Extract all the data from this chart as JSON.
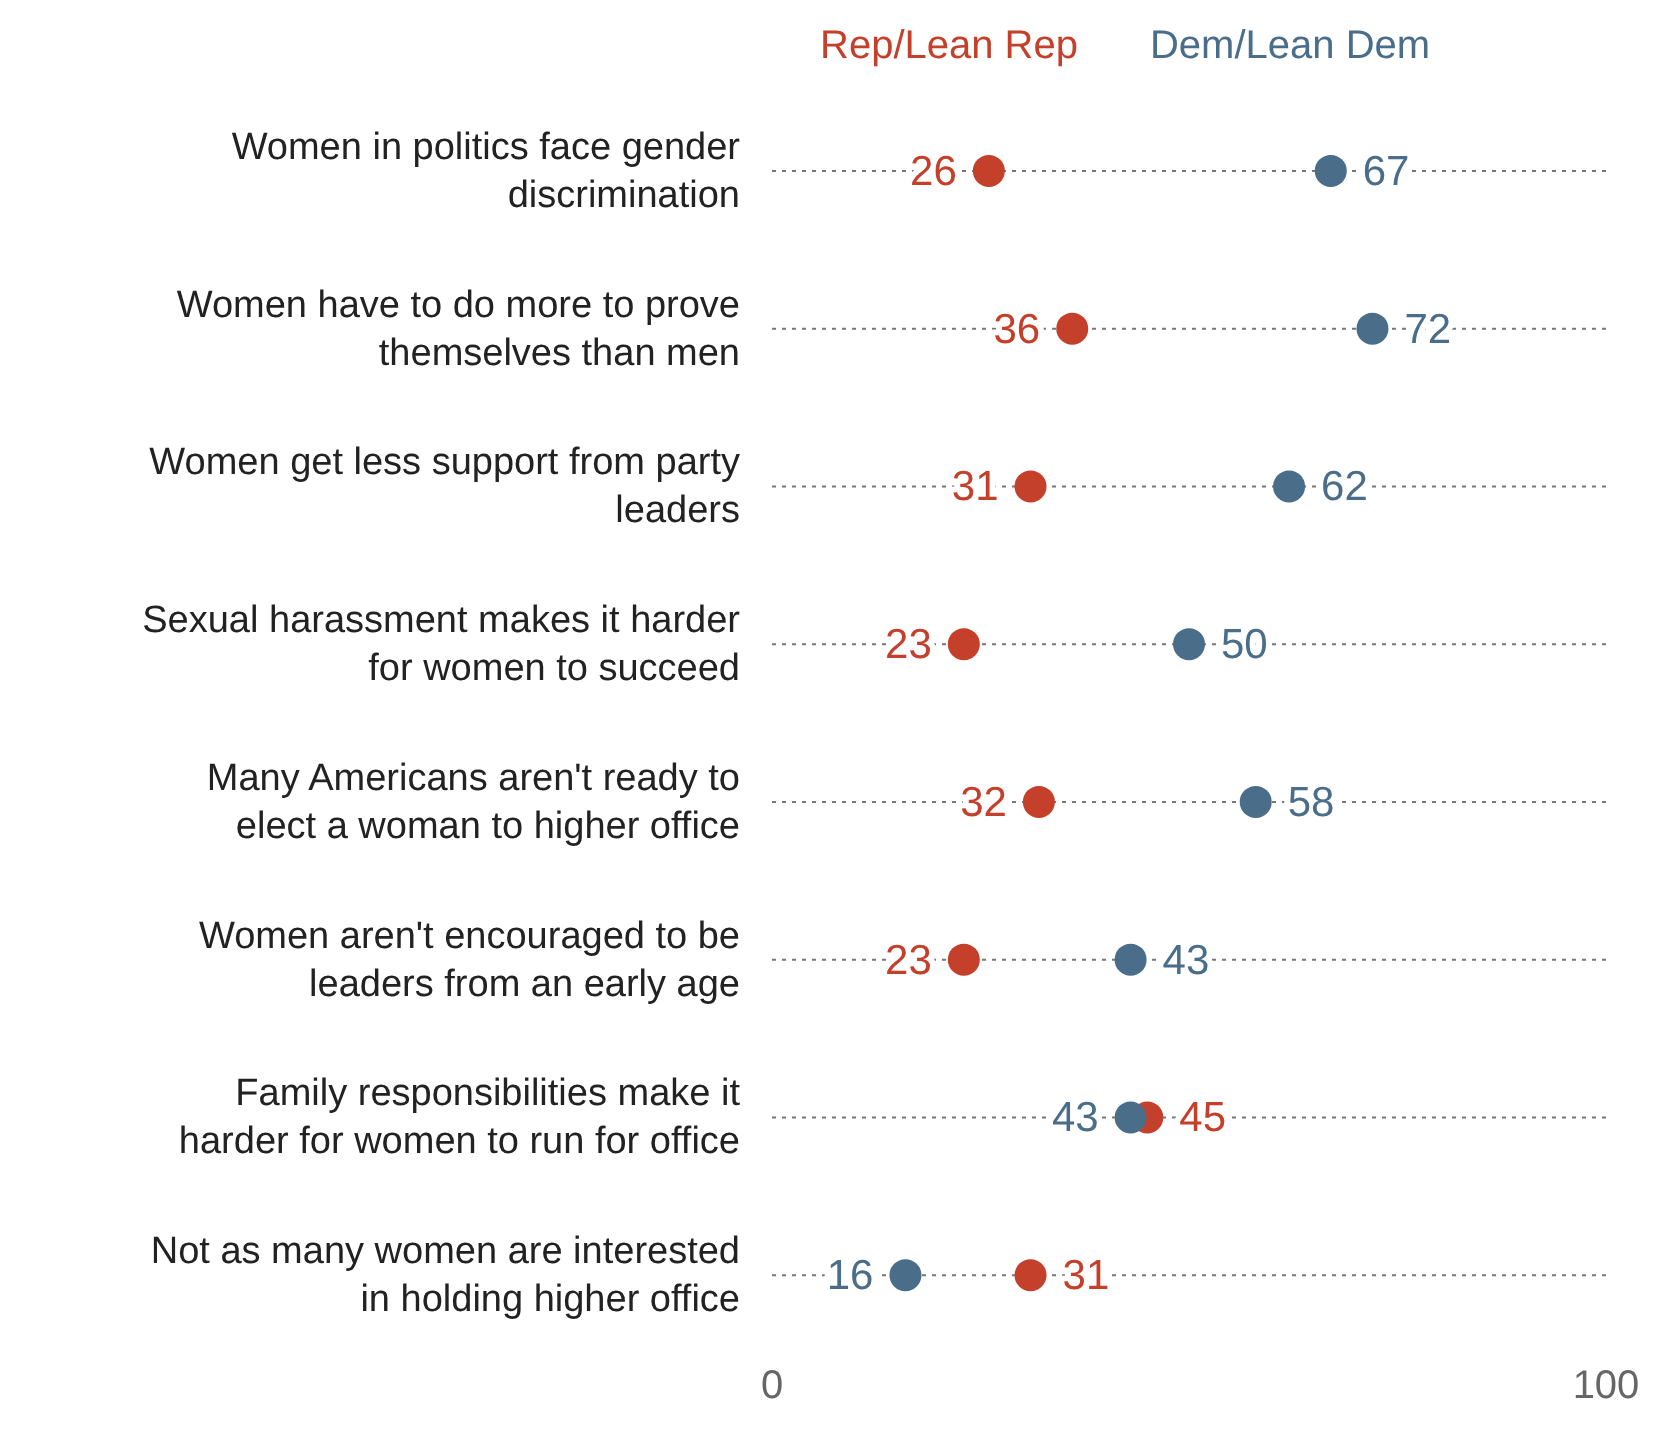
{
  "chart_data": {
    "type": "scatter",
    "orientation": "horizontal",
    "categories": [
      "Women in politics face gender discrimination",
      "Women have to do more to prove themselves than men",
      "Women get less support from party leaders",
      "Sexual harassment makes it harder for women to succeed",
      "Many Americans aren't ready to elect a woman to higher office",
      "Women aren't encouraged to be leaders from an early age",
      "Family responsibilities make it harder for women to run for office",
      "Not as many women are interested in holding higher office"
    ],
    "series": [
      {
        "name": "Rep/Lean Rep",
        "color": "#c4402a",
        "values": [
          26,
          36,
          31,
          23,
          32,
          23,
          45,
          31
        ]
      },
      {
        "name": "Dem/Lean Dem",
        "color": "#4a6e8a",
        "values": [
          67,
          72,
          62,
          50,
          58,
          43,
          43,
          16
        ]
      }
    ],
    "xlim": [
      0,
      100
    ],
    "xticks": [
      0,
      100
    ],
    "data_labels": true,
    "grid": "y",
    "legend": "top",
    "marker": "circle"
  }
}
